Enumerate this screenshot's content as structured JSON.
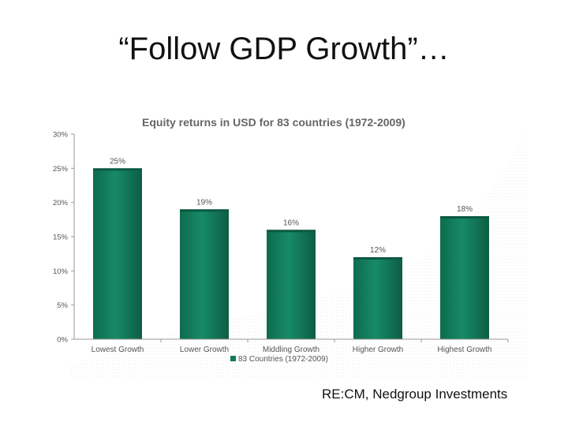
{
  "slide": {
    "title": "“Follow GDP Growth”…",
    "credit": "RE:CM, Nedgroup Investments"
  },
  "chart_data": {
    "type": "bar",
    "title": "Equity returns in USD for 83 countries (1972-2009)",
    "categories": [
      "Lowest Growth",
      "Lower Growth",
      "Middling Growth",
      "Higher Growth",
      "Highest Growth"
    ],
    "series": [
      {
        "name": "83 Countries (1972-2009)",
        "values": [
          25,
          19,
          16,
          12,
          18
        ],
        "data_labels": [
          "25%",
          "19%",
          "16%",
          "12%",
          "18%"
        ],
        "color": "#127a5a"
      }
    ],
    "yticks": [
      "0%",
      "5%",
      "10%",
      "15%",
      "20%",
      "25%",
      "30%"
    ],
    "ylim": [
      0,
      30
    ],
    "grid": false,
    "legend_position": "bottom",
    "colors": {
      "bar": "#127a5a",
      "bar_dark": "#0b5a41",
      "axis": "#9a9a9a",
      "text": "#555555",
      "title": "#666666"
    }
  }
}
